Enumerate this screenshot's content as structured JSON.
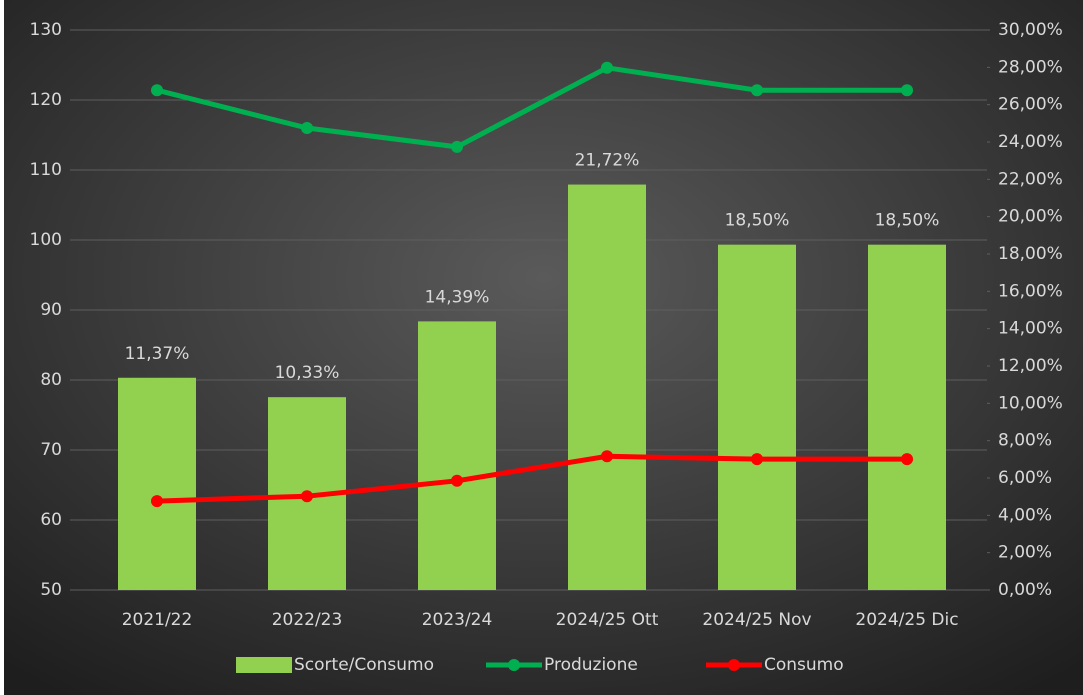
{
  "chart_data": {
    "type": "combo",
    "categories": [
      "2021/22",
      "2022/23",
      "2023/24",
      "2024/25 Ott",
      "2024/25 Nov",
      "2024/25 Dic"
    ],
    "series": [
      {
        "name": "Scorte/Consumo",
        "type": "bar",
        "axis": "y2",
        "color": "#92d050",
        "values": [
          11.37,
          10.33,
          14.39,
          21.72,
          18.5,
          18.5
        ],
        "value_labels": [
          "11,37%",
          "10,33%",
          "14,39%",
          "21,72%",
          "18,50%",
          "18,50%"
        ]
      },
      {
        "name": "Produzione",
        "type": "line",
        "color": "#00b050",
        "values": [
          121.4,
          116,
          113.3,
          124.6,
          121.4,
          121.4
        ]
      },
      {
        "name": "Consumo",
        "type": "line",
        "color": "#ff0000",
        "values": [
          62.7,
          63.4,
          65.6,
          69.1,
          68.7,
          68.7
        ]
      }
    ],
    "ylim": [
      50,
      130
    ],
    "yticks": [
      50,
      60,
      70,
      80,
      90,
      100,
      110,
      120,
      130
    ],
    "y2lim": [
      0,
      30
    ],
    "y2ticks": [
      {
        "value": 0,
        "label": "0,00%"
      },
      {
        "value": 2,
        "label": "2,00%"
      },
      {
        "value": 4,
        "label": "4,00%"
      },
      {
        "value": 6,
        "label": "6,00%"
      },
      {
        "value": 8,
        "label": "8,00%"
      },
      {
        "value": 10,
        "label": "10,00%"
      },
      {
        "value": 12,
        "label": "12,00%"
      },
      {
        "value": 14,
        "label": "14,00%"
      },
      {
        "value": 16,
        "label": "16,00%"
      },
      {
        "value": 18,
        "label": "18,00%"
      },
      {
        "value": 20,
        "label": "20,00%"
      },
      {
        "value": 22,
        "label": "22,00%"
      },
      {
        "value": 24,
        "label": "24,00%"
      },
      {
        "value": 26,
        "label": "26,00%"
      },
      {
        "value": 28,
        "label": "28,00%"
      },
      {
        "value": 30,
        "label": "30,00%"
      }
    ],
    "grid": true,
    "legend": "bottom"
  }
}
